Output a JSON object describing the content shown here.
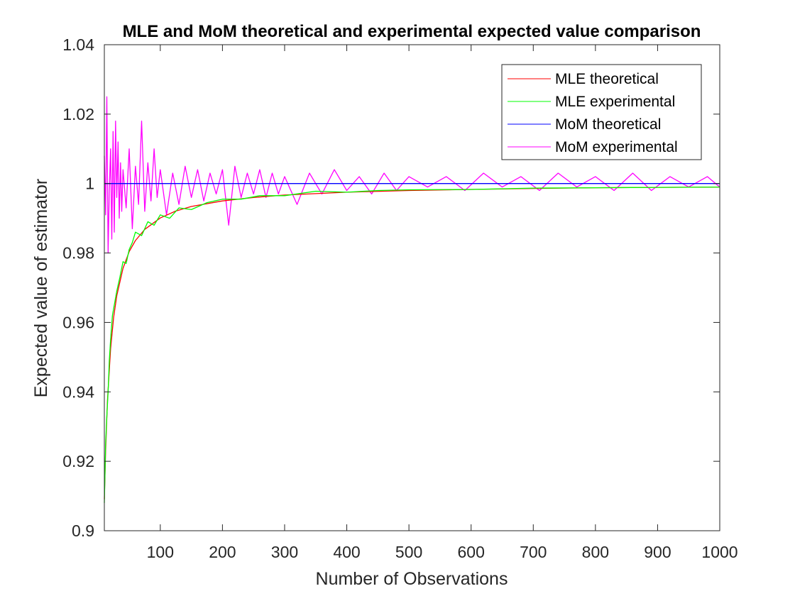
{
  "chart_data": {
    "type": "line",
    "title": "MLE and MoM theoretical and experimental expected value comparison",
    "xlabel": "Number of Observations",
    "ylabel": "Expected value of estimator",
    "xlim": [
      10,
      1000
    ],
    "ylim": [
      0.9,
      1.04
    ],
    "xticks": [
      100,
      200,
      300,
      400,
      500,
      600,
      700,
      800,
      900,
      1000
    ],
    "xtick_labels": [
      "100",
      "200",
      "300",
      "400",
      "500",
      "600",
      "700",
      "800",
      "900",
      "1000"
    ],
    "yticks": [
      0.9,
      0.92,
      0.94,
      0.96,
      0.98,
      1.0,
      1.02,
      1.04
    ],
    "ytick_labels": [
      "0.9",
      "0.92",
      "0.94",
      "0.96",
      "0.98",
      "1",
      "1.02",
      "1.04"
    ],
    "grid": false,
    "legend_position": "top-right",
    "series": [
      {
        "name": "MLE theoretical",
        "color": "#ff0000",
        "x": [
          10,
          12,
          15,
          20,
          25,
          30,
          40,
          50,
          60,
          75,
          100,
          125,
          150,
          200,
          250,
          300,
          400,
          500,
          600,
          700,
          800,
          900,
          1000
        ],
        "y": [
          0.9091,
          0.9231,
          0.9375,
          0.9524,
          0.9615,
          0.9677,
          0.9756,
          0.9804,
          0.9836,
          0.9868,
          0.9901,
          0.9921,
          0.9934,
          0.995,
          0.996,
          0.9967,
          0.9975,
          0.998,
          0.9983,
          0.9986,
          0.9988,
          0.9989,
          0.999
        ]
      },
      {
        "name": "MLE experimental",
        "color": "#00ff00",
        "x": [
          10,
          12,
          14,
          16,
          18,
          20,
          23,
          26,
          30,
          35,
          40,
          45,
          50,
          55,
          60,
          70,
          80,
          90,
          100,
          115,
          130,
          150,
          175,
          200,
          230,
          260,
          300,
          350,
          400,
          450,
          500,
          600,
          700,
          800,
          900,
          1000
        ],
        "y": [
          0.908,
          0.925,
          0.933,
          0.94,
          0.949,
          0.955,
          0.962,
          0.965,
          0.969,
          0.973,
          0.9775,
          0.977,
          0.981,
          0.983,
          0.986,
          0.985,
          0.989,
          0.988,
          0.991,
          0.99,
          0.993,
          0.9925,
          0.9945,
          0.9955,
          0.9955,
          0.9965,
          0.9965,
          0.9978,
          0.9975,
          0.998,
          0.9982,
          0.9983,
          0.9987,
          0.9988,
          0.9989,
          0.999
        ]
      },
      {
        "name": "MoM theoretical",
        "color": "#0000ff",
        "x": [
          10,
          1000
        ],
        "y": [
          1.0,
          1.0
        ]
      },
      {
        "name": "MoM experimental",
        "color": "#ff00ff",
        "x": [
          10,
          12,
          14,
          16,
          18,
          20,
          22,
          24,
          26,
          28,
          30,
          32,
          34,
          36,
          38,
          40,
          45,
          50,
          55,
          60,
          65,
          70,
          75,
          80,
          85,
          90,
          95,
          100,
          110,
          120,
          130,
          140,
          150,
          160,
          170,
          180,
          190,
          200,
          210,
          220,
          230,
          240,
          250,
          260,
          270,
          280,
          290,
          300,
          320,
          340,
          360,
          380,
          400,
          420,
          440,
          460,
          480,
          500,
          530,
          560,
          590,
          620,
          650,
          680,
          710,
          740,
          770,
          800,
          830,
          860,
          890,
          920,
          950,
          980,
          1000
        ],
        "y": [
          1.008,
          0.991,
          1.025,
          0.98,
          0.998,
          1.01,
          0.984,
          1.015,
          0.986,
          1.018,
          0.996,
          1.012,
          0.99,
          1.006,
          0.992,
          1.004,
          0.993,
          1.01,
          0.987,
          1.005,
          0.994,
          1.018,
          0.992,
          1.006,
          0.995,
          1.01,
          0.996,
          1.004,
          0.991,
          1.003,
          0.994,
          1.005,
          0.996,
          1.004,
          0.995,
          1.003,
          0.997,
          1.004,
          0.988,
          1.005,
          0.996,
          1.003,
          0.997,
          1.004,
          0.996,
          1.003,
          0.997,
          1.002,
          0.994,
          1.003,
          0.997,
          1.004,
          0.998,
          1.002,
          0.997,
          1.003,
          0.998,
          1.002,
          0.999,
          1.002,
          0.998,
          1.003,
          0.999,
          1.002,
          0.998,
          1.003,
          0.999,
          1.002,
          0.998,
          1.003,
          0.998,
          1.002,
          0.999,
          1.002,
          0.999
        ]
      }
    ]
  }
}
